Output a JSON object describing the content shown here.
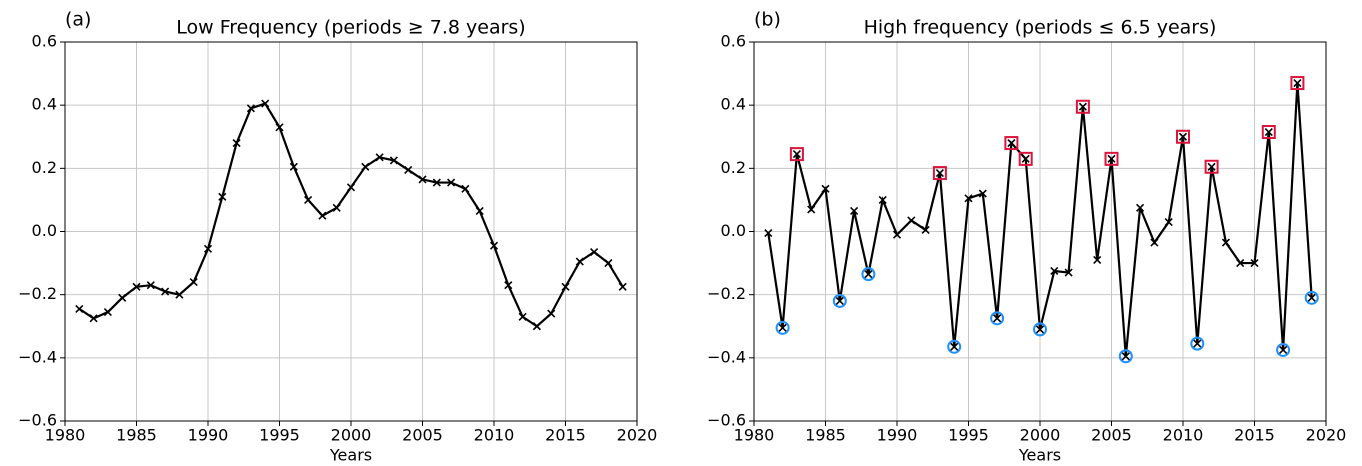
{
  "chart_data": [
    {
      "type": "line",
      "panel_label": "(a)",
      "title": "Low Frequency (periods ≥ 7.8 years)",
      "xlabel": "Years",
      "x": [
        1981,
        1982,
        1983,
        1984,
        1985,
        1986,
        1987,
        1988,
        1989,
        1990,
        1991,
        1992,
        1993,
        1994,
        1995,
        1996,
        1997,
        1998,
        1999,
        2000,
        2001,
        2002,
        2003,
        2004,
        2005,
        2006,
        2007,
        2008,
        2009,
        2010,
        2011,
        2012,
        2013,
        2014,
        2015,
        2016,
        2017,
        2018,
        2019
      ],
      "series": [
        {
          "color": "#000000",
          "marker": "x",
          "values": [
            -0.245,
            -0.275,
            -0.255,
            -0.21,
            -0.175,
            -0.17,
            -0.19,
            -0.2,
            -0.16,
            -0.055,
            0.11,
            0.28,
            0.39,
            0.405,
            0.33,
            0.205,
            0.1,
            0.05,
            0.075,
            0.14,
            0.205,
            0.235,
            0.225,
            0.195,
            0.165,
            0.155,
            0.155,
            0.135,
            0.065,
            -0.045,
            -0.17,
            -0.27,
            -0.3,
            -0.26,
            -0.175,
            -0.095,
            -0.065,
            -0.1,
            -0.175
          ]
        }
      ],
      "highlights": [],
      "xlim": [
        1980,
        2020
      ],
      "ylim": [
        -0.6,
        0.6
      ],
      "xticks": [
        1980,
        1985,
        1990,
        1995,
        2000,
        2005,
        2010,
        2015,
        2020
      ],
      "yticks": [
        {
          "value": -0.6,
          "label": "−0.6"
        },
        {
          "value": -0.4,
          "label": "−0.4"
        },
        {
          "value": -0.2,
          "label": "−0.2"
        },
        {
          "value": 0,
          "label": "0.0"
        },
        0.2,
        0.4,
        0.6
      ],
      "grid": true
    },
    {
      "type": "line",
      "panel_label": "(b)",
      "title": "High frequency (periods ≤ 6.5 years)",
      "xlabel": "Years",
      "x": [
        1981,
        1982,
        1983,
        1984,
        1985,
        1986,
        1987,
        1988,
        1989,
        1990,
        1991,
        1992,
        1993,
        1994,
        1995,
        1996,
        1997,
        1998,
        1999,
        2000,
        2001,
        2002,
        2003,
        2004,
        2005,
        2006,
        2007,
        2008,
        2009,
        2010,
        2011,
        2012,
        2013,
        2014,
        2015,
        2016,
        2017,
        2018,
        2019
      ],
      "series": [
        {
          "color": "#000000",
          "marker": "x",
          "values": [
            -0.005,
            -0.305,
            0.245,
            0.07,
            0.135,
            -0.22,
            0.065,
            -0.135,
            0.1,
            -0.01,
            0.035,
            0.005,
            0.185,
            -0.365,
            0.105,
            0.12,
            -0.275,
            0.28,
            0.23,
            -0.31,
            -0.125,
            -0.13,
            0.395,
            -0.09,
            0.23,
            -0.395,
            0.075,
            -0.035,
            0.03,
            0.3,
            -0.355,
            0.205,
            -0.035,
            -0.1,
            -0.1,
            0.315,
            -0.375,
            0.47,
            -0.21
          ]
        }
      ],
      "highlights": [
        {
          "color": "#dc143c",
          "marker": "square",
          "x": [
            1983,
            1993,
            1998,
            1999,
            2003,
            2005,
            2010,
            2012,
            2016,
            2018
          ]
        },
        {
          "color": "#1e90ff",
          "marker": "circle",
          "x": [
            1982,
            1986,
            1988,
            1994,
            1997,
            2000,
            2006,
            2011,
            2017,
            2019
          ]
        }
      ],
      "xlim": [
        1980,
        2020
      ],
      "ylim": [
        -0.6,
        0.6
      ],
      "xticks": [
        1980,
        1985,
        1990,
        1995,
        2000,
        2005,
        2010,
        2015,
        2020
      ],
      "yticks": [
        {
          "value": -0.6,
          "label": "−0.6"
        },
        {
          "value": -0.4,
          "label": "−0.4"
        },
        {
          "value": -0.2,
          "label": "−0.2"
        },
        {
          "value": 0,
          "label": "0.0"
        },
        0.2,
        0.4,
        0.6
      ],
      "grid": true
    }
  ]
}
